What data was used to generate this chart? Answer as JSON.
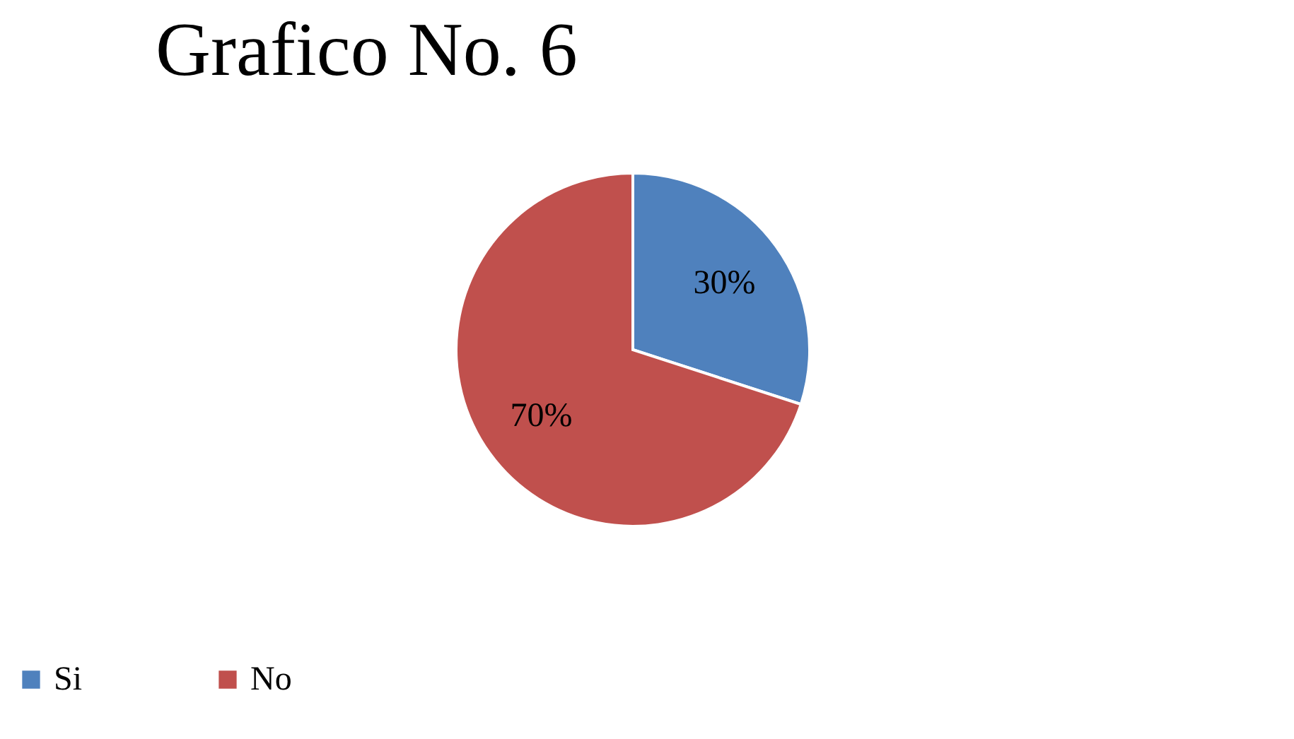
{
  "chart_data": {
    "type": "pie",
    "title": "Grafico No. 6",
    "categories": [
      "Si",
      "No"
    ],
    "values": [
      30,
      70
    ],
    "colors": [
      "#4f81bd",
      "#c0504d"
    ],
    "value_labels": [
      "30%",
      "70%"
    ],
    "legend": "bottom"
  }
}
